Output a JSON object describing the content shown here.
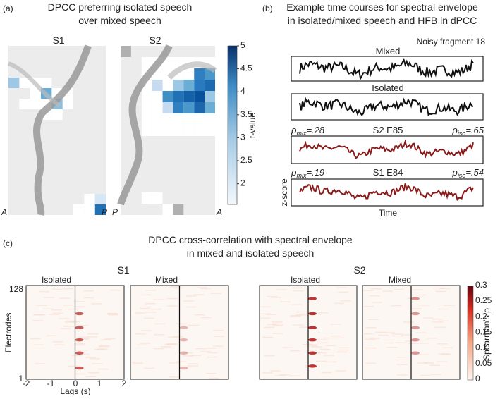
{
  "panel_a": {
    "label": "(a)",
    "title": [
      "DPCC preferring isolated speech",
      "over mixed speech"
    ],
    "subjects": [
      "S1",
      "S2"
    ],
    "orientation": {
      "s1_left": "A",
      "s1_right": "P",
      "s2_left": "P",
      "s2_right": "A"
    },
    "colorbar": {
      "label": "t-value",
      "ticks": [
        "5",
        "4.5",
        "4",
        "3.5",
        "3",
        "2.5",
        "2"
      ]
    }
  },
  "panel_b": {
    "label": "(b)",
    "title": [
      "Example time courses for spectral envelope",
      "in isolated/mixed speech and HFB in dPCC"
    ],
    "fragment": "Noisy fragment 18",
    "traces": [
      "Mixed",
      "Isolated"
    ],
    "electrodes": [
      {
        "name": "S2 E85",
        "rho_symbol": "ρ",
        "mix_sub": "mix",
        "mix_value": "=.28",
        "iso_sub": "iso",
        "iso_value": "=.65"
      },
      {
        "name": "S1 E84",
        "rho_symbol": "ρ",
        "mix_sub": "mix",
        "mix_value": "=.19",
        "iso_sub": "iso",
        "iso_value": "=.54"
      }
    ],
    "y_label": "z-score",
    "x_label": "Time"
  },
  "panel_c": {
    "label": "(c)",
    "title": [
      "DPCC cross-correlation with spectral envelope",
      "in mixed and isolated speech"
    ],
    "subjects": [
      "S1",
      "S2"
    ],
    "conditions": [
      "Isolated",
      "Mixed"
    ],
    "y_label": "Electrodes",
    "y_ticks": [
      "128",
      "1"
    ],
    "x_label": "Lags (s)",
    "x_ticks": [
      "-2",
      "-1",
      "0",
      "1",
      "2"
    ],
    "colorbar": {
      "label": "Spearman's ρ",
      "ticks": [
        "0.3",
        "0.25",
        "0.2",
        "0.15",
        "0.1",
        "0.05",
        "0"
      ]
    }
  }
}
